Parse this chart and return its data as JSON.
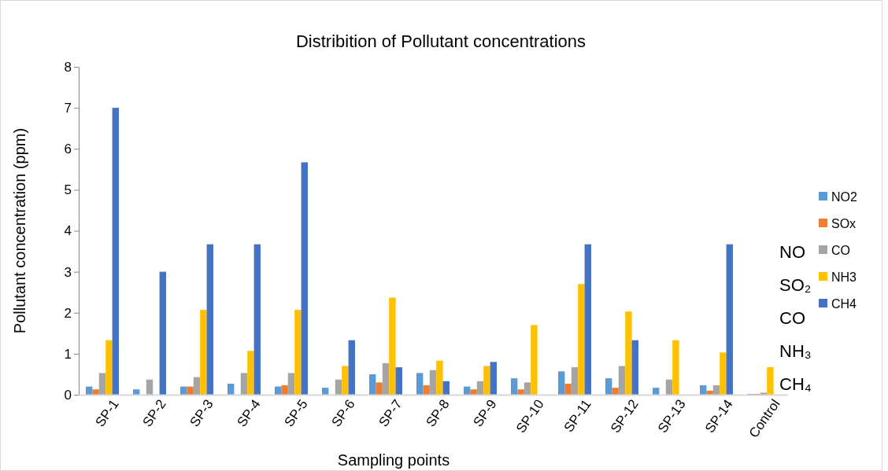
{
  "chart_data": {
    "type": "bar",
    "title": "Distribition of Pollutant concentrations",
    "xlabel": "Sampling points",
    "ylabel": "Pollutant concentration (ppm)",
    "categories": [
      "SP-1",
      "SP-2",
      "SP-3",
      "SP-4",
      "SP-5",
      "SP-6",
      "SP-7",
      "SP-8",
      "SP-9",
      "SP-10",
      "SP-11",
      "SP-12",
      "SP-13",
      "SP-14",
      "Control"
    ],
    "series": [
      {
        "name": "NO2",
        "color": "#5b9bd5",
        "values": [
          0.2,
          0.13,
          0.2,
          0.27,
          0.2,
          0.17,
          0.5,
          0.53,
          0.2,
          0.4,
          0.57,
          0.4,
          0.17,
          0.23,
          0.02
        ]
      },
      {
        "name": "SOx",
        "color": "#ed7d31",
        "values": [
          0.13,
          0,
          0.2,
          0,
          0.23,
          0,
          0.3,
          0.23,
          0.13,
          0.13,
          0.27,
          0.17,
          0,
          0.1,
          0.02
        ]
      },
      {
        "name": "CO",
        "color": "#a5a5a5",
        "values": [
          0.53,
          0.37,
          0.43,
          0.53,
          0.53,
          0.37,
          0.77,
          0.6,
          0.33,
          0.3,
          0.67,
          0.7,
          0.37,
          0.23,
          0.05
        ]
      },
      {
        "name": "NH3",
        "color": "#ffc000",
        "values": [
          1.33,
          0,
          2.07,
          1.07,
          2.07,
          0.7,
          2.37,
          0.83,
          0.7,
          1.7,
          2.7,
          2.03,
          1.33,
          1.03,
          0.67
        ]
      },
      {
        "name": "CH4",
        "color": "#4472c4",
        "values": [
          7,
          3,
          3.67,
          3.67,
          5.67,
          1.33,
          0.67,
          0.33,
          0.8,
          0,
          3.67,
          1.33,
          0,
          3.67,
          0
        ]
      }
    ],
    "ylim": [
      0,
      8
    ],
    "yticks": [
      0,
      1,
      2,
      3,
      4,
      5,
      6,
      7,
      8
    ],
    "grid": false,
    "legend": "right",
    "annotations": [
      "NO",
      "SO₂",
      "CO",
      "NH₃",
      "CH₄"
    ]
  }
}
